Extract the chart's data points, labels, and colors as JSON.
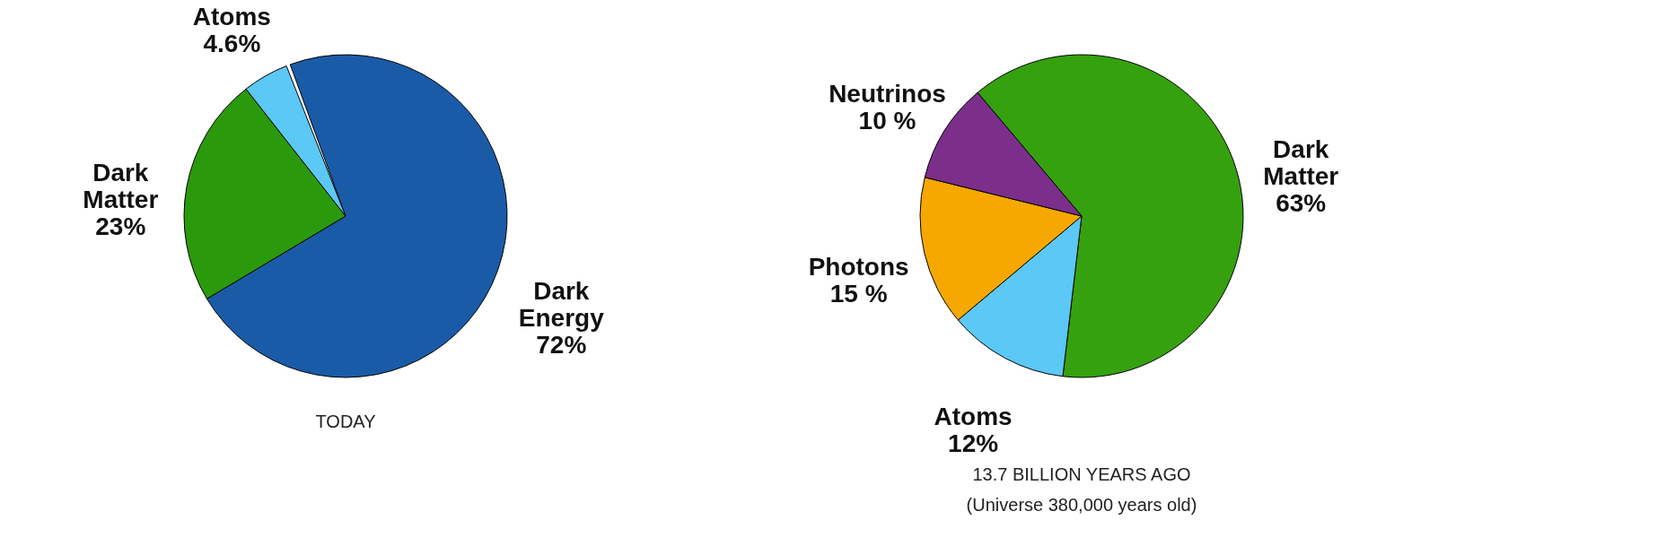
{
  "chart_data": [
    {
      "type": "pie",
      "title": "TODAY",
      "categories": [
        "Dark Energy",
        "Dark Matter",
        "Atoms"
      ],
      "values": [
        72,
        23,
        4.6
      ],
      "colors": [
        "#1a5ba8",
        "#2a9a0c",
        "#5bc8f5"
      ],
      "value_labels": [
        "72%",
        "23%",
        "4.6%"
      ],
      "legend": false
    },
    {
      "type": "pie",
      "title": "13.7 BILLION YEARS AGO",
      "subtitle": "(Universe 380,000 years old)",
      "categories": [
        "Dark Matter",
        "Atoms",
        "Photons",
        "Neutrinos"
      ],
      "values": [
        63,
        12,
        15,
        10
      ],
      "colors": [
        "#35a10f",
        "#5bc8f5",
        "#f7a800",
        "#7b2f8a"
      ],
      "value_labels": [
        "63%",
        "12%",
        "15 %",
        "10 %"
      ],
      "legend": false
    }
  ]
}
